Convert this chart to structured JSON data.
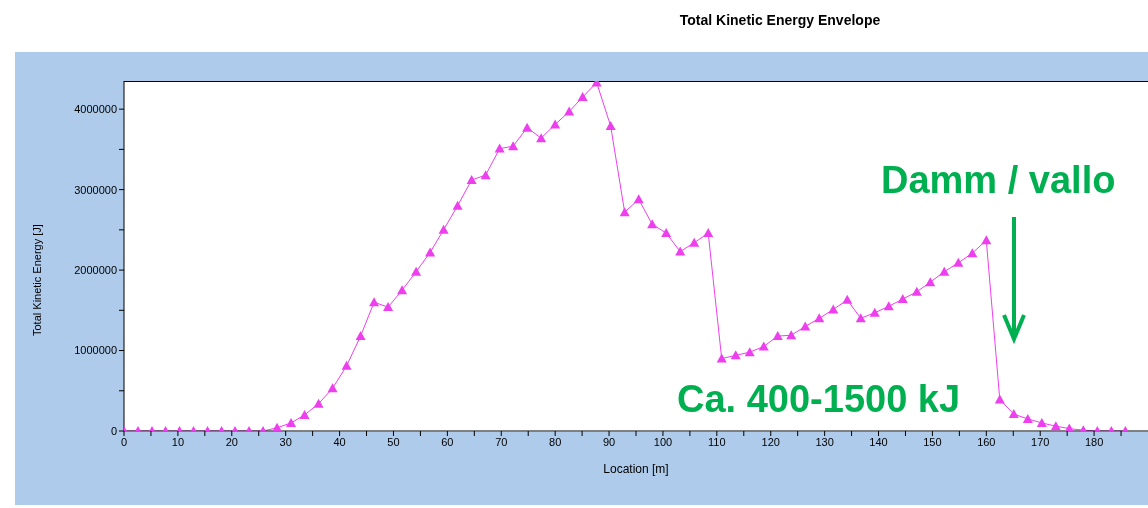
{
  "chart_data": {
    "type": "line",
    "title": "Total Kinetic Energy Envelope",
    "xlabel": "Location [m]",
    "ylabel": "Total Kinetic Energy [J]",
    "annotations": [
      "Damm / vallo",
      "Ca. 400-1500 kJ"
    ],
    "x": [
      0,
      2.6,
      5.2,
      7.7,
      10.3,
      12.9,
      15.5,
      18.1,
      20.6,
      23.2,
      25.8,
      28.4,
      31,
      33.5,
      36.1,
      38.7,
      41.3,
      43.9,
      46.4,
      49,
      51.6,
      54.2,
      56.8,
      59.3,
      61.9,
      64.5,
      67.1,
      69.7,
      72.2,
      74.8,
      77.4,
      80,
      82.6,
      85.1,
      87.7,
      90.3,
      92.9,
      95.5,
      98,
      100.6,
      103.2,
      105.8,
      108.4,
      110.9,
      113.5,
      116.1,
      118.7,
      121.3,
      123.8,
      126.4,
      129,
      131.6,
      134.2,
      136.7,
      139.3,
      141.9,
      144.5,
      147.1,
      149.6,
      152.2,
      154.8,
      157.4,
      160,
      162.5,
      165.1,
      167.7,
      170.3,
      172.9,
      175.4,
      178,
      180.6,
      183.2,
      185.8
    ],
    "series": [
      {
        "color": "#ee3fee",
        "values": [
          0,
          0,
          0,
          0,
          0,
          0,
          0,
          0,
          0,
          0,
          0,
          40000,
          100000,
          200000,
          340000,
          530000,
          810000,
          1180000,
          1600000,
          1540000,
          1750000,
          1980000,
          2220000,
          2500000,
          2800000,
          3120000,
          3180000,
          3510000,
          3540000,
          3770000,
          3640000,
          3810000,
          3970000,
          4150000,
          4330000,
          3790000,
          2720000,
          2880000,
          2570000,
          2460000,
          2230000,
          2340000,
          2460000,
          900000,
          940000,
          980000,
          1050000,
          1180000,
          1190000,
          1300000,
          1400000,
          1510000,
          1630000,
          1400000,
          1470000,
          1550000,
          1640000,
          1730000,
          1850000,
          1980000,
          2090000,
          2210000,
          2370000,
          390000,
          210000,
          150000,
          100000,
          60000,
          30000,
          10000,
          0,
          0,
          0
        ]
      }
    ],
    "xlim": [
      0,
      190
    ],
    "xticks": [
      0,
      {
        "value": 5,
        "label": null
      },
      10,
      {
        "value": 15,
        "label": null
      },
      20,
      {
        "value": 25,
        "label": null
      },
      30,
      {
        "value": 35,
        "label": null
      },
      40,
      {
        "value": 45,
        "label": null
      },
      50,
      {
        "value": 55,
        "label": null
      },
      60,
      {
        "value": 65,
        "label": null
      },
      70,
      {
        "value": 75,
        "label": null
      },
      80,
      {
        "value": 85,
        "label": null
      },
      90,
      {
        "value": 95,
        "label": null
      },
      100,
      {
        "value": 105,
        "label": null
      },
      110,
      {
        "value": 115,
        "label": null
      },
      120,
      {
        "value": 125,
        "label": null
      },
      130,
      {
        "value": 135,
        "label": null
      },
      140,
      {
        "value": 145,
        "label": null
      },
      150,
      {
        "value": 155,
        "label": null
      },
      160,
      {
        "value": 165,
        "label": null
      },
      170,
      {
        "value": 175,
        "label": null
      },
      180,
      {
        "value": 185,
        "label": null
      }
    ],
    "ylim": [
      0,
      4350000
    ],
    "yticks": [
      0,
      {
        "value": 500000,
        "label": null
      },
      1000000,
      {
        "value": 1500000,
        "label": null
      },
      2000000,
      {
        "value": 2500000,
        "label": null
      },
      3000000,
      {
        "value": 3500000,
        "label": null
      },
      4000000
    ],
    "marker": "triangle",
    "line_style": "solid"
  }
}
